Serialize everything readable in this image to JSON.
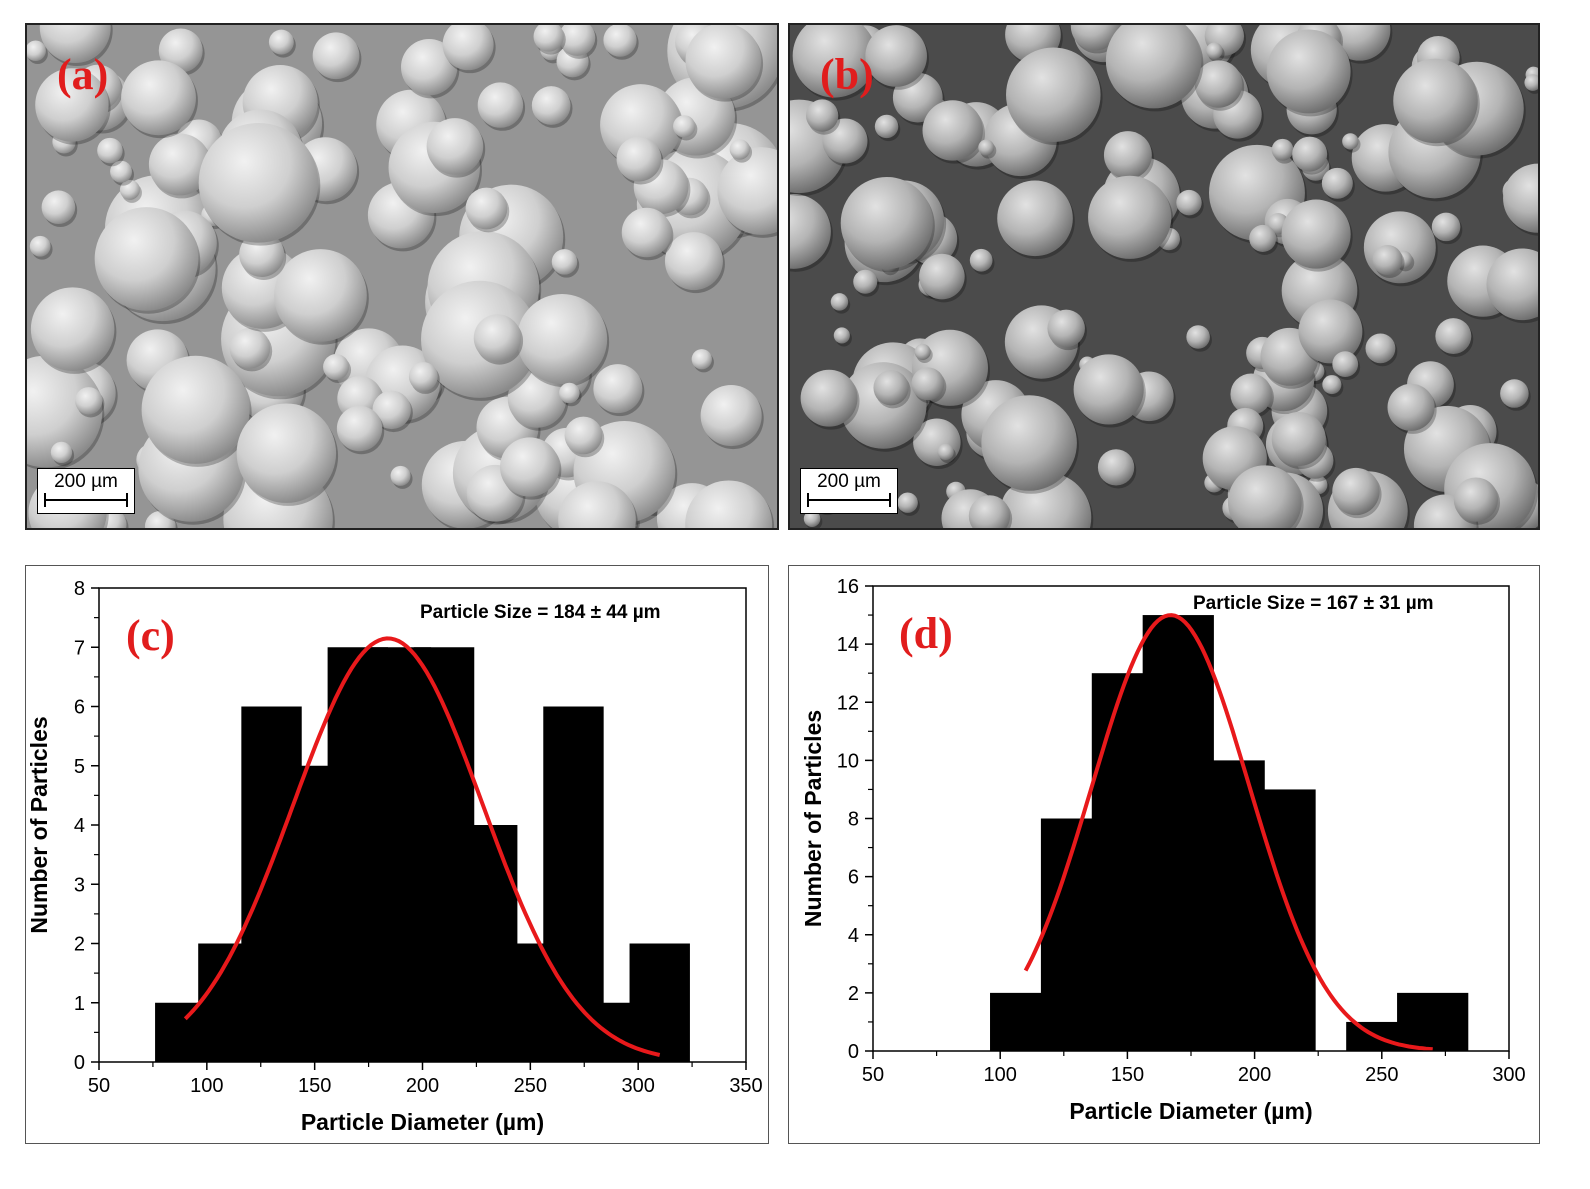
{
  "panels": {
    "a": {
      "label": "(a)",
      "scalebar": "200 µm"
    },
    "b": {
      "label": "(b)",
      "scalebar": "200 µm"
    }
  },
  "colors": {
    "label_red": "#e11d1d",
    "bar": "#000000",
    "fit_curve": "#e8191b"
  },
  "chart_data": [
    {
      "id": "c",
      "type": "bar",
      "panel_label": "(c)",
      "annotation": "Particle Size = 184 ± 44 µm",
      "xlabel": "Particle Diameter (µm)",
      "ylabel": "Number of Particles",
      "xlim": [
        50,
        350
      ],
      "ylim": [
        0,
        8
      ],
      "xticks": [
        50,
        100,
        150,
        200,
        250,
        300,
        350
      ],
      "yticks": [
        0,
        1,
        2,
        3,
        4,
        5,
        6,
        7,
        8
      ],
      "bar_width": 14,
      "x": [
        90,
        110,
        130,
        150,
        170,
        190,
        210,
        230,
        250,
        270,
        290,
        310
      ],
      "values": [
        1,
        2,
        6,
        5,
        7,
        7,
        7,
        4,
        2,
        6,
        1,
        2
      ],
      "fit": {
        "type": "gaussian",
        "mean": 184,
        "sd": 44,
        "peak": 7.15,
        "x_range": [
          90,
          310
        ]
      }
    },
    {
      "id": "d",
      "type": "bar",
      "panel_label": "(d)",
      "annotation": "Particle Size = 167 ± 31 µm",
      "xlabel": "Particle Diameter (µm)",
      "ylabel": "Number of Particles",
      "xlim": [
        50,
        300
      ],
      "ylim": [
        0,
        16
      ],
      "xticks": [
        50,
        100,
        150,
        200,
        250,
        300
      ],
      "yticks": [
        0,
        2,
        4,
        6,
        8,
        10,
        12,
        14,
        16
      ],
      "bar_width": 14,
      "x": [
        110,
        130,
        150,
        170,
        190,
        210,
        250,
        270
      ],
      "values": [
        2,
        8,
        13,
        15,
        10,
        9,
        1,
        2
      ],
      "fit": {
        "type": "gaussian",
        "mean": 167,
        "sd": 31,
        "peak": 15,
        "x_range": [
          110,
          270
        ]
      }
    }
  ]
}
